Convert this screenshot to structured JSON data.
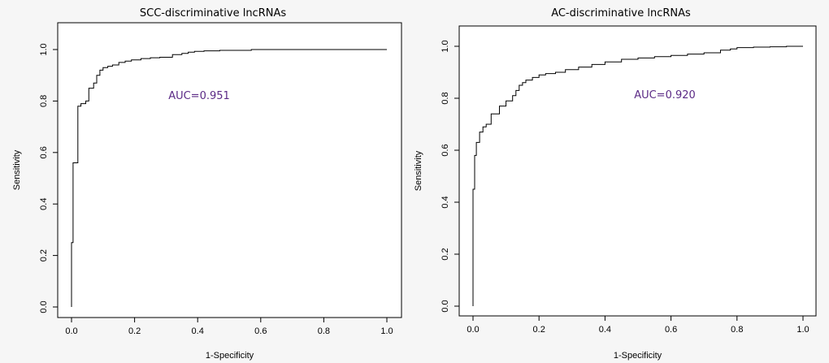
{
  "chart_data": [
    {
      "type": "line",
      "title": "SCC-discriminative lncRNAs",
      "xlabel": "1-Specificity",
      "ylabel": "Sensitivity",
      "xlim": [
        0,
        1
      ],
      "ylim": [
        0,
        1
      ],
      "xticks": [
        "0.0",
        "0.2",
        "0.4",
        "0.6",
        "0.8",
        "1.0"
      ],
      "yticks": [
        "0.0",
        "0.2",
        "0.4",
        "0.6",
        "0.8",
        "1.0"
      ],
      "annotation": {
        "text": "AUC=0.951",
        "color": "#5b2a86"
      },
      "grid": false,
      "series": [
        {
          "x": [
            0,
            0,
            0.005,
            0.005,
            0.02,
            0.02,
            0.03,
            0.03,
            0.045,
            0.045,
            0.055,
            0.055,
            0.07,
            0.07,
            0.08,
            0.08,
            0.09,
            0.09,
            0.1,
            0.1,
            0.115,
            0.115,
            0.13,
            0.13,
            0.15,
            0.15,
            0.17,
            0.17,
            0.19,
            0.19,
            0.22,
            0.22,
            0.25,
            0.25,
            0.28,
            0.28,
            0.32,
            0.32,
            0.35,
            0.35,
            0.37,
            0.37,
            0.39,
            0.39,
            0.42,
            0.42,
            0.47,
            0.47,
            0.57,
            0.57,
            0.6,
            0.6,
            0.8,
            0.8,
            1.0
          ],
          "y": [
            0,
            0.25,
            0.25,
            0.56,
            0.56,
            0.78,
            0.78,
            0.79,
            0.79,
            0.8,
            0.8,
            0.85,
            0.85,
            0.87,
            0.87,
            0.9,
            0.9,
            0.92,
            0.92,
            0.93,
            0.93,
            0.935,
            0.935,
            0.94,
            0.94,
            0.95,
            0.95,
            0.955,
            0.955,
            0.96,
            0.96,
            0.965,
            0.965,
            0.968,
            0.968,
            0.97,
            0.97,
            0.98,
            0.98,
            0.985,
            0.985,
            0.99,
            0.99,
            0.993,
            0.993,
            0.995,
            0.995,
            0.997,
            0.997,
            1.0,
            1.0,
            1.0,
            1.0,
            1.0,
            1.0
          ]
        }
      ]
    },
    {
      "type": "line",
      "title": "AC-discriminative lncRNAs",
      "xlabel": "1-Specificity",
      "ylabel": "Sensitivity",
      "xlim": [
        0,
        1
      ],
      "ylim": [
        0,
        1
      ],
      "xticks": [
        "0.0",
        "0.2",
        "0.4",
        "0.6",
        "0.8",
        "1.0"
      ],
      "yticks": [
        "0.0",
        "0.2",
        "0.4",
        "0.6",
        "0.8",
        "1.0"
      ],
      "annotation": {
        "text": "AUC=0.920",
        "color": "#5b2a86"
      },
      "grid": false,
      "series": [
        {
          "x": [
            0,
            0,
            0.005,
            0.005,
            0.01,
            0.01,
            0.02,
            0.02,
            0.03,
            0.03,
            0.04,
            0.04,
            0.055,
            0.055,
            0.08,
            0.08,
            0.1,
            0.1,
            0.12,
            0.12,
            0.13,
            0.13,
            0.14,
            0.14,
            0.15,
            0.15,
            0.16,
            0.16,
            0.18,
            0.18,
            0.2,
            0.2,
            0.22,
            0.22,
            0.25,
            0.25,
            0.28,
            0.28,
            0.32,
            0.32,
            0.36,
            0.36,
            0.4,
            0.4,
            0.45,
            0.45,
            0.5,
            0.5,
            0.55,
            0.55,
            0.6,
            0.6,
            0.65,
            0.65,
            0.7,
            0.7,
            0.75,
            0.75,
            0.78,
            0.78,
            0.8,
            0.8,
            0.85,
            0.85,
            0.9,
            0.9,
            0.95,
            0.95,
            1.0
          ],
          "y": [
            0,
            0.45,
            0.45,
            0.58,
            0.58,
            0.63,
            0.63,
            0.67,
            0.67,
            0.69,
            0.69,
            0.7,
            0.7,
            0.74,
            0.74,
            0.77,
            0.77,
            0.79,
            0.79,
            0.81,
            0.81,
            0.83,
            0.83,
            0.85,
            0.85,
            0.86,
            0.86,
            0.87,
            0.87,
            0.88,
            0.88,
            0.89,
            0.89,
            0.895,
            0.895,
            0.9,
            0.9,
            0.91,
            0.91,
            0.92,
            0.92,
            0.93,
            0.93,
            0.94,
            0.94,
            0.95,
            0.95,
            0.955,
            0.955,
            0.96,
            0.96,
            0.965,
            0.965,
            0.97,
            0.97,
            0.975,
            0.975,
            0.985,
            0.985,
            0.99,
            0.99,
            0.995,
            0.995,
            0.997,
            0.997,
            0.998,
            0.998,
            1.0,
            1.0
          ]
        }
      ]
    }
  ]
}
